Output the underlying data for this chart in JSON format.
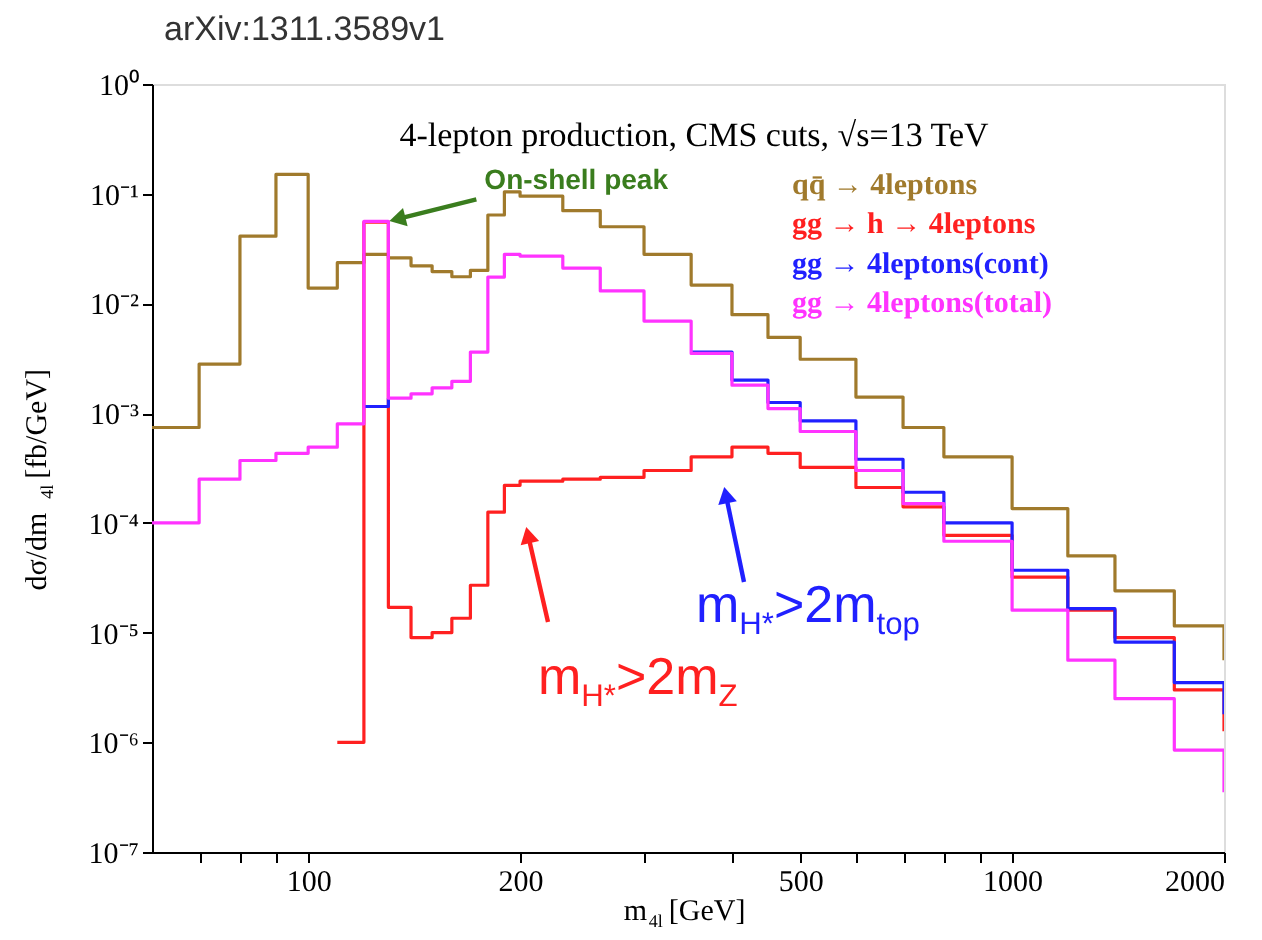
{
  "chart_data": {
    "type": "step",
    "title": "4-lepton production, CMS cuts, √s=13 TeV",
    "xlabel": "m$_{4l}$[GeV]",
    "ylabel": "dσ/dm$_{4l}$[fb/GeV]",
    "x": [
      60,
      70,
      80,
      90,
      100,
      110,
      120,
      130,
      140,
      150,
      160,
      170,
      180,
      190,
      200,
      230,
      260,
      300,
      350,
      400,
      450,
      500,
      600,
      700,
      800,
      1000,
      1200,
      1400,
      1700,
      2000
    ],
    "series": [
      {
        "name": "qq̄ → 4leptons",
        "color": "#a07a2c",
        "values": [
          0.00074,
          0.0028,
          0.041,
          0.15,
          0.0138,
          0.0235,
          0.028,
          0.026,
          0.022,
          0.0195,
          0.0175,
          0.02,
          0.064,
          0.104,
          0.095,
          0.07,
          0.05,
          0.028,
          0.0147,
          0.0079,
          0.0049,
          0.0031,
          0.0014,
          0.00074,
          0.0004,
          0.000135,
          5e-05,
          2.4e-05,
          1.15e-05,
          5.6e-06
        ]
      },
      {
        "name": "gg → h → 4leptons",
        "color": "#ff2020",
        "x": [
          110,
          120,
          130,
          140,
          150,
          160,
          170,
          180,
          190,
          200,
          230,
          260,
          300,
          350,
          400,
          450,
          500,
          600,
          700,
          800,
          1000,
          1200,
          1400,
          1700,
          2000
        ],
        "values": [
          1e-06,
          0.055,
          1.7e-05,
          9e-06,
          1e-05,
          1.35e-05,
          2.7e-05,
          0.000125,
          0.00022,
          0.00024,
          0.00025,
          0.00026,
          0.0003,
          0.0004,
          0.00049,
          0.00043,
          0.00032,
          0.00021,
          0.00014,
          7.7e-05,
          3.2e-05,
          1.6e-05,
          9e-06,
          3e-06,
          1.26e-06
        ]
      },
      {
        "name": "gg → 4leptons(cont)",
        "color": "#2020ff",
        "values": [
          null,
          null,
          null,
          null,
          null,
          null,
          0.00115,
          0.00137,
          null,
          null,
          null,
          null,
          null,
          null,
          null,
          null,
          null,
          null,
          0.0036,
          0.002,
          0.00125,
          0.00085,
          0.00038,
          0.00019,
          0.0001,
          3.7e-05,
          1.65e-05,
          8.2e-06,
          3.5e-06,
          1.8e-06
        ]
      },
      {
        "name": "gg → 4leptons(total)",
        "color": "#ff33ff",
        "values": [
          0.0001,
          0.00025,
          0.00037,
          0.00043,
          0.00049,
          0.0008,
          0.056,
          0.00137,
          0.0015,
          0.0017,
          0.00195,
          0.0036,
          0.0174,
          0.028,
          0.027,
          0.021,
          0.013,
          0.0069,
          0.0035,
          0.0018,
          0.0011,
          0.00068,
          0.0003,
          0.00015,
          6.8e-05,
          1.6e-05,
          5.6e-06,
          2.5e-06,
          8.5e-07,
          3.5e-07
        ]
      }
    ],
    "log": "xy",
    "xlim": [
      60,
      2000
    ],
    "ylim": [
      1e-07,
      1
    ],
    "xticks": [
      {
        "value": 70,
        "label": null
      },
      {
        "value": 80,
        "label": null
      },
      {
        "value": 90,
        "label": null
      },
      100,
      200,
      {
        "value": 300,
        "label": null
      },
      {
        "value": 400,
        "label": null
      },
      500,
      {
        "value": 600,
        "label": null
      },
      {
        "value": 700,
        "label": null
      },
      {
        "value": 800,
        "label": null
      },
      {
        "value": 900,
        "label": null
      },
      1000,
      2000
    ],
    "yticks": [
      {
        "value": 1e-07,
        "label": "10⁻⁷"
      },
      {
        "value": 1e-06,
        "label": "10⁻⁶"
      },
      {
        "value": 1e-05,
        "label": "10⁻⁵"
      },
      {
        "value": 0.0001,
        "label": "10⁻⁴"
      },
      {
        "value": 0.001,
        "label": "10⁻³"
      },
      {
        "value": 0.01,
        "label": "10⁻²"
      },
      {
        "value": 0.1,
        "label": "10⁻¹"
      },
      {
        "value": 1,
        "label": "10⁰"
      }
    ],
    "grid": false,
    "legend": "top right",
    "annotations": [
      "arXiv:1311.3589v1",
      {
        "text": "On-shell peak",
        "x": 130,
        "y": 0.056
      },
      "m$_{H*}$>2m$_{Z}$",
      "m$_{H*}$>2m$_{top}$"
    ]
  }
}
